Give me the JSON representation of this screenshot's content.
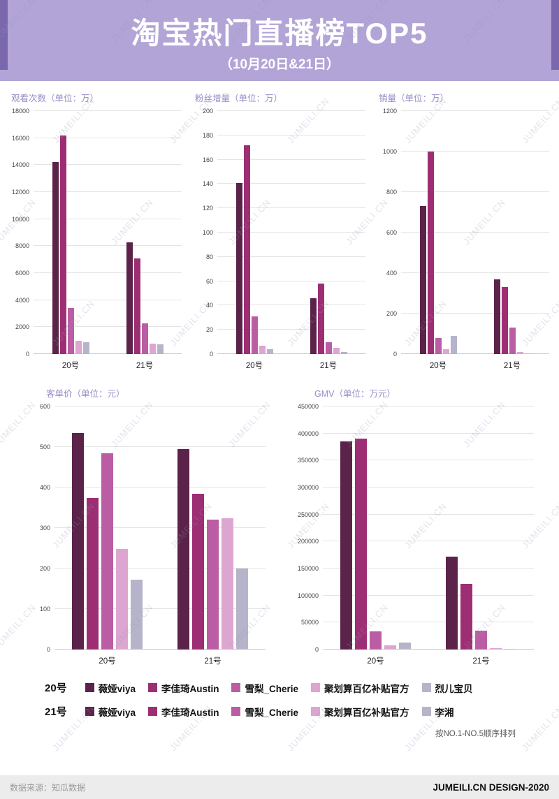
{
  "header": {
    "title": "淘宝热门直播榜TOP5",
    "subtitle": "（10月20日&21日）"
  },
  "series_colors": [
    "#5b2349",
    "#9e2e74",
    "#ba5da4",
    "#dda6d0",
    "#b6b4ca"
  ],
  "chart_data": [
    {
      "type": "bar",
      "title": "观看次数（单位：万）",
      "categories": [
        "20号",
        "21号"
      ],
      "series": [
        {
          "name": "薇娅viya",
          "values": [
            14200,
            8300
          ]
        },
        {
          "name": "李佳琦Austin",
          "values": [
            16200,
            7100
          ]
        },
        {
          "name": "雪梨_Cherie",
          "values": [
            3400,
            2300
          ]
        },
        {
          "name": "聚划算百亿补贴官方",
          "values": [
            1000,
            800
          ]
        },
        {
          "name": "烈儿宝贝/李湘",
          "values": [
            900,
            750
          ]
        }
      ],
      "ylim": [
        0,
        18000
      ],
      "ytick": 2000,
      "grid": true,
      "legend_position": "bottom-shared"
    },
    {
      "type": "bar",
      "title": "粉丝增量（单位：万）",
      "categories": [
        "20号",
        "21号"
      ],
      "series": [
        {
          "name": "薇娅viya",
          "values": [
            141,
            46
          ]
        },
        {
          "name": "李佳琦Austin",
          "values": [
            172,
            58
          ]
        },
        {
          "name": "雪梨_Cherie",
          "values": [
            31,
            10
          ]
        },
        {
          "name": "聚划算百亿补贴官方",
          "values": [
            7,
            5
          ]
        },
        {
          "name": "烈儿宝贝/李湘",
          "values": [
            4,
            2
          ]
        }
      ],
      "ylim": [
        0,
        200
      ],
      "ytick": 20,
      "grid": true,
      "legend_position": "bottom-shared"
    },
    {
      "type": "bar",
      "title": "销量（单位：万）",
      "categories": [
        "20号",
        "21号"
      ],
      "series": [
        {
          "name": "薇娅viya",
          "values": [
            730,
            370
          ]
        },
        {
          "name": "李佳琦Austin",
          "values": [
            1000,
            330
          ]
        },
        {
          "name": "雪梨_Cherie",
          "values": [
            80,
            130
          ]
        },
        {
          "name": "聚划算百亿补贴官方",
          "values": [
            25,
            10
          ]
        },
        {
          "name": "烈儿宝贝/李湘",
          "values": [
            90,
            5
          ]
        }
      ],
      "ylim": [
        0,
        1200
      ],
      "ytick": 200,
      "grid": true,
      "legend_position": "bottom-shared"
    },
    {
      "type": "bar",
      "title": "客单价（单位：元）",
      "categories": [
        "20号",
        "21号"
      ],
      "series": [
        {
          "name": "薇娅viya",
          "values": [
            535,
            495
          ]
        },
        {
          "name": "李佳琦Austin",
          "values": [
            375,
            385
          ]
        },
        {
          "name": "雪梨_Cherie",
          "values": [
            485,
            320
          ]
        },
        {
          "name": "聚划算百亿补贴官方",
          "values": [
            248,
            325
          ]
        },
        {
          "name": "烈儿宝贝/李湘",
          "values": [
            172,
            200
          ]
        }
      ],
      "ylim": [
        0,
        600
      ],
      "ytick": 100,
      "grid": true,
      "legend_position": "bottom-shared"
    },
    {
      "type": "bar",
      "title": "GMV（单位：万元）",
      "categories": [
        "20号",
        "21号"
      ],
      "series": [
        {
          "name": "薇娅viya",
          "values": [
            385000,
            172000
          ]
        },
        {
          "name": "李佳琦Austin",
          "values": [
            390000,
            122000
          ]
        },
        {
          "name": "雪梨_Cherie",
          "values": [
            33000,
            35000
          ]
        },
        {
          "name": "聚划算百亿补贴官方",
          "values": [
            8000,
            2000
          ]
        },
        {
          "name": "烈儿宝贝/李湘",
          "values": [
            13000,
            1500
          ]
        }
      ],
      "ylim": [
        0,
        450000
      ],
      "ytick": 50000,
      "grid": true,
      "legend_position": "bottom-shared"
    }
  ],
  "legend": {
    "rows": [
      {
        "label": "20号",
        "items": [
          "薇娅viya",
          "李佳琦Austin",
          "雪梨_Cherie",
          "聚划算百亿补贴官方",
          "烈儿宝贝"
        ]
      },
      {
        "label": "21号",
        "items": [
          "薇娅viya",
          "李佳琦Austin",
          "雪梨_Cherie",
          "聚划算百亿补贴官方",
          "李湘"
        ]
      }
    ],
    "note": "按NO.1-NO.5顺序排列"
  },
  "footer": {
    "source": "数据来源：知瓜数据",
    "credit": "JUMEILI.CN DESIGN-2020"
  },
  "watermark": "JUMEILI.CN"
}
